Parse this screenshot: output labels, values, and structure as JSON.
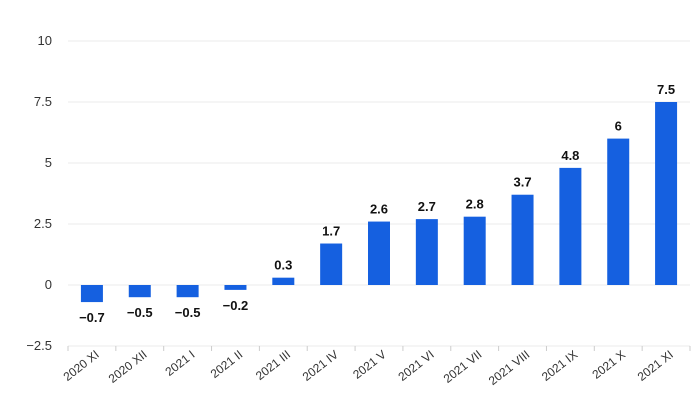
{
  "chart_data": {
    "type": "bar",
    "categories": [
      "2020 XI",
      "2020 XII",
      "2021 I",
      "2021 II",
      "2021 III",
      "2021 IV",
      "2021 V",
      "2021 VI",
      "2021 VII",
      "2021 VIII",
      "2021 IX",
      "2021 X",
      "2021 XI"
    ],
    "values": [
      -0.7,
      -0.5,
      -0.5,
      -0.2,
      0.3,
      1.7,
      2.6,
      2.7,
      2.8,
      3.7,
      4.8,
      6,
      7.5
    ],
    "data_labels": [
      "−0.7",
      "−0.5",
      "−0.5",
      "−0.2",
      "0.3",
      "1.7",
      "2.6",
      "2.7",
      "2.8",
      "3.7",
      "4.8",
      "6",
      "7.5"
    ],
    "title": "",
    "xlabel": "",
    "ylabel": "",
    "ylim": [
      -2.5,
      10
    ],
    "yticks": [
      -2.5,
      0,
      2.5,
      5,
      7.5,
      10
    ],
    "ytick_labels": [
      "−2.5",
      "0",
      "2.5",
      "5",
      "7.5",
      "10"
    ],
    "grid": true,
    "bar_color": "#1560e0"
  }
}
